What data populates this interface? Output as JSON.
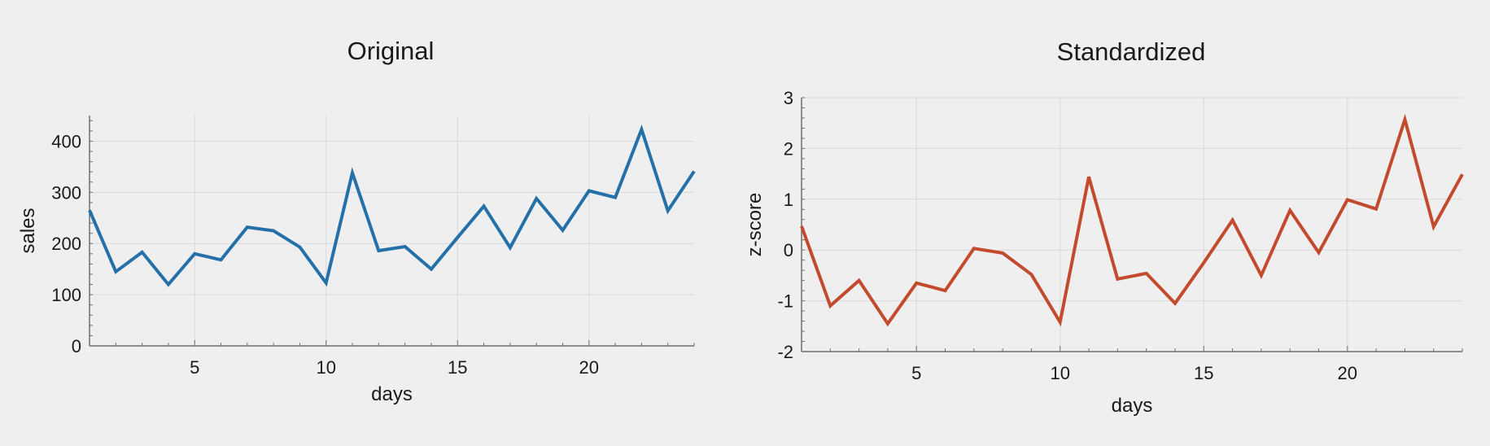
{
  "colors": {
    "background": "#efefef",
    "grid": "#d9d9d9",
    "axis": "#6e6e6e",
    "series_original": "#2470a8",
    "series_standardized": "#c34a2c"
  },
  "chart_data": [
    {
      "type": "line",
      "title": "Original",
      "xlabel": "days",
      "ylabel": "sales",
      "xlim": [
        1,
        24
      ],
      "ylim": [
        0,
        450
      ],
      "xticks": [
        5,
        10,
        15,
        20
      ],
      "yticks": [
        0,
        100,
        200,
        300,
        400
      ],
      "grid": true,
      "series": [
        {
          "color": "#2470a8",
          "x": [
            1,
            2,
            3,
            4,
            5,
            6,
            7,
            8,
            9,
            10,
            11,
            12,
            13,
            14,
            15,
            16,
            17,
            18,
            19,
            20,
            21,
            22,
            23,
            24
          ],
          "y": [
            265,
            145,
            183,
            120,
            180,
            168,
            232,
            225,
            193,
            123,
            338,
            186,
            194,
            150,
            212,
            273,
            192,
            288,
            226,
            303,
            290,
            423,
            264,
            341
          ]
        }
      ]
    },
    {
      "type": "line",
      "title": "Standardized",
      "xlabel": "days",
      "ylabel": "z-score",
      "xlim": [
        1,
        24
      ],
      "ylim": [
        -2,
        3
      ],
      "xticks": [
        5,
        10,
        15,
        20
      ],
      "yticks": [
        -2,
        -1,
        0,
        1,
        2,
        3
      ],
      "grid": true,
      "series": [
        {
          "color": "#c34a2c",
          "x": [
            1,
            2,
            3,
            4,
            5,
            6,
            7,
            8,
            9,
            10,
            11,
            12,
            13,
            14,
            15,
            16,
            17,
            18,
            19,
            20,
            21,
            22,
            23,
            24
          ],
          "y": [
            0.47,
            -1.1,
            -0.6,
            -1.45,
            -0.65,
            -0.8,
            0.03,
            -0.06,
            -0.48,
            -1.42,
            1.44,
            -0.57,
            -0.46,
            -1.05,
            -0.25,
            0.59,
            -0.5,
            0.78,
            -0.05,
            0.99,
            0.81,
            2.57,
            0.46,
            1.49
          ]
        }
      ]
    }
  ]
}
